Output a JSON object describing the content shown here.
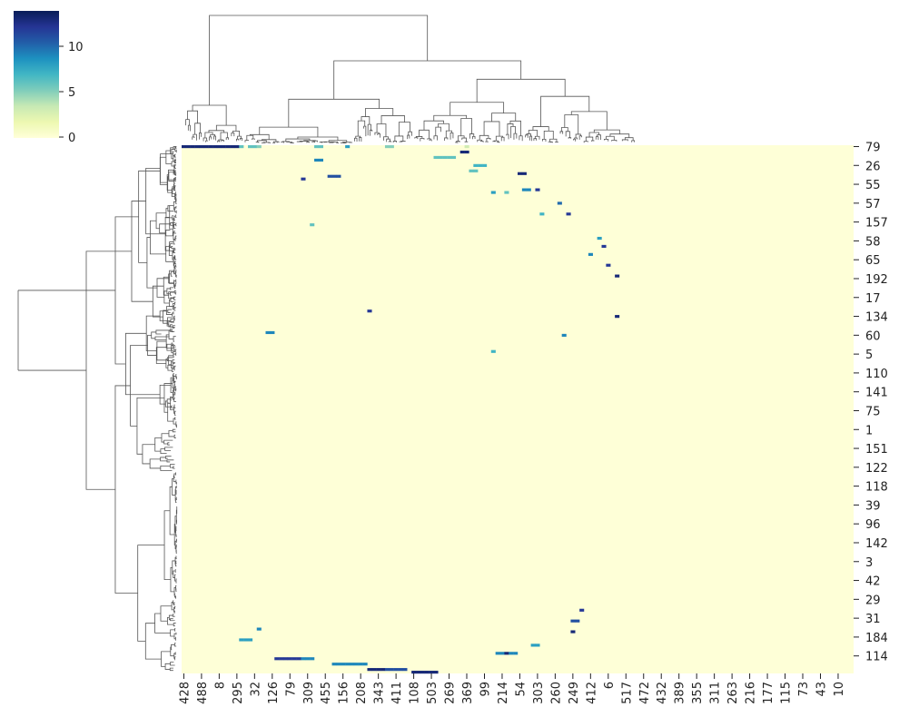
{
  "chart_data": {
    "type": "clustermap",
    "colormap": "YlGnBu",
    "clim": [
      -0.1,
      13.9
    ],
    "cbar_ticks": [
      0,
      5,
      10
    ],
    "row_labels": [
      "79",
      "26",
      "55",
      "57",
      "157",
      "58",
      "65",
      "192",
      "17",
      "134",
      "60",
      "5",
      "110",
      "141",
      "75",
      "1",
      "151",
      "122",
      "118",
      "39",
      "96",
      "142",
      "3",
      "42",
      "29",
      "31",
      "184",
      "114"
    ],
    "col_labels": [
      "428",
      "488",
      "8",
      "295",
      "32",
      "126",
      "79",
      "309",
      "455",
      "156",
      "208",
      "343",
      "411",
      "108",
      "503",
      "269",
      "369",
      "99",
      "214",
      "54",
      "303",
      "260",
      "249",
      "412",
      "6",
      "517",
      "472",
      "432",
      "389",
      "355",
      "311",
      "263",
      "216",
      "177",
      "115",
      "73",
      "43",
      "10"
    ],
    "cells": [
      [
        0,
        0,
        13
      ],
      [
        0,
        1,
        13
      ],
      [
        0,
        2,
        13
      ],
      [
        0,
        3,
        13
      ],
      [
        0,
        4,
        13
      ],
      [
        0,
        5,
        13
      ],
      [
        0,
        6,
        13
      ],
      [
        0,
        7,
        13
      ],
      [
        0,
        8,
        13
      ],
      [
        0,
        9,
        13
      ],
      [
        0,
        10,
        13
      ],
      [
        0,
        11,
        13
      ],
      [
        0,
        12,
        13
      ],
      [
        0,
        13,
        6
      ],
      [
        0,
        15,
        6
      ],
      [
        0,
        16,
        6
      ],
      [
        0,
        17,
        5
      ],
      [
        0,
        30,
        6
      ],
      [
        0,
        31,
        6
      ],
      [
        0,
        37,
        8
      ],
      [
        0,
        46,
        5
      ],
      [
        0,
        47,
        5
      ],
      [
        0,
        64,
        3
      ],
      [
        2,
        63,
        13
      ],
      [
        2,
        64,
        13
      ],
      [
        4,
        57,
        6
      ],
      [
        4,
        58,
        6
      ],
      [
        4,
        59,
        6
      ],
      [
        4,
        60,
        6
      ],
      [
        4,
        61,
        6
      ],
      [
        5,
        30,
        9
      ],
      [
        5,
        31,
        9
      ],
      [
        7,
        66,
        7
      ],
      [
        7,
        67,
        7
      ],
      [
        7,
        68,
        7
      ],
      [
        9,
        65,
        6
      ],
      [
        9,
        66,
        6
      ],
      [
        10,
        76,
        13
      ],
      [
        10,
        77,
        13
      ],
      [
        11,
        33,
        11
      ],
      [
        11,
        34,
        11
      ],
      [
        11,
        35,
        11
      ],
      [
        12,
        27,
        12
      ],
      [
        16,
        77,
        9
      ],
      [
        16,
        78,
        9
      ],
      [
        16,
        80,
        12
      ],
      [
        17,
        70,
        8
      ],
      [
        17,
        73,
        6
      ],
      [
        21,
        85,
        10
      ],
      [
        25,
        81,
        7
      ],
      [
        25,
        87,
        12
      ],
      [
        29,
        29,
        6
      ],
      [
        34,
        94,
        8
      ],
      [
        37,
        95,
        12
      ],
      [
        40,
        92,
        9
      ],
      [
        44,
        96,
        12
      ],
      [
        48,
        98,
        13
      ],
      [
        61,
        42,
        12
      ],
      [
        63,
        98,
        13
      ],
      [
        69,
        19,
        9
      ],
      [
        69,
        20,
        9
      ],
      [
        70,
        86,
        9
      ],
      [
        76,
        70,
        7
      ],
      [
        172,
        90,
        12
      ],
      [
        176,
        88,
        11
      ],
      [
        176,
        89,
        11
      ],
      [
        179,
        17,
        9
      ],
      [
        180,
        88,
        13
      ],
      [
        183,
        13,
        8
      ],
      [
        183,
        14,
        8
      ],
      [
        183,
        15,
        8
      ],
      [
        185,
        79,
        8
      ],
      [
        185,
        80,
        8
      ],
      [
        188,
        71,
        9
      ],
      [
        188,
        72,
        9
      ],
      [
        188,
        73,
        13
      ],
      [
        188,
        74,
        9
      ],
      [
        188,
        75,
        9
      ],
      [
        190,
        21,
        12
      ],
      [
        190,
        22,
        12
      ],
      [
        190,
        23,
        12
      ],
      [
        190,
        24,
        12
      ],
      [
        190,
        25,
        12
      ],
      [
        190,
        26,
        12
      ],
      [
        190,
        27,
        9
      ],
      [
        190,
        28,
        9
      ],
      [
        190,
        29,
        9
      ],
      [
        192,
        34,
        9
      ],
      [
        192,
        35,
        9
      ],
      [
        192,
        36,
        9
      ],
      [
        192,
        37,
        9
      ],
      [
        192,
        38,
        9
      ],
      [
        192,
        39,
        9
      ],
      [
        192,
        40,
        9
      ],
      [
        192,
        41,
        9
      ],
      [
        194,
        42,
        13
      ],
      [
        194,
        43,
        13
      ],
      [
        194,
        44,
        13
      ],
      [
        194,
        45,
        13
      ],
      [
        194,
        46,
        11
      ],
      [
        194,
        47,
        11
      ],
      [
        194,
        48,
        11
      ],
      [
        194,
        49,
        11
      ],
      [
        194,
        50,
        11
      ],
      [
        195,
        52,
        13
      ],
      [
        195,
        53,
        13
      ],
      [
        195,
        54,
        13
      ],
      [
        195,
        55,
        13
      ],
      [
        195,
        56,
        13
      ],
      [
        195,
        57,
        13
      ]
    ]
  }
}
